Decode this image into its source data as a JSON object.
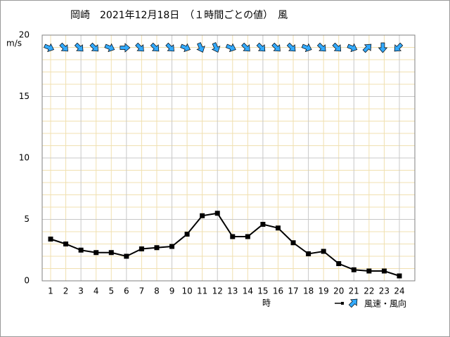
{
  "chart_data": {
    "type": "line",
    "title": "岡崎　2021年12月18日　（１時間ごとの値）　風",
    "y_label": "m/s",
    "x_label": "時",
    "categories": [
      1,
      2,
      3,
      4,
      5,
      6,
      7,
      8,
      9,
      10,
      11,
      12,
      13,
      14,
      15,
      16,
      17,
      18,
      19,
      20,
      21,
      22,
      23,
      24
    ],
    "series": [
      {
        "name": "風速・風向",
        "color": "#000000",
        "values": [
          3.4,
          3.0,
          2.5,
          2.3,
          2.3,
          2.0,
          2.6,
          2.7,
          2.8,
          3.8,
          5.3,
          5.5,
          3.6,
          3.6,
          4.6,
          4.3,
          3.1,
          2.2,
          2.4,
          1.4,
          0.9,
          0.8,
          0.8,
          0.4
        ],
        "direction_deg": [
          112,
          135,
          135,
          135,
          112,
          90,
          135,
          135,
          135,
          112,
          157,
          157,
          112,
          135,
          135,
          135,
          135,
          112,
          135,
          135,
          112,
          45,
          180,
          225
        ],
        "arrow_color": "#33aaff"
      }
    ],
    "ylim": [
      0,
      20
    ],
    "yticks": [
      0,
      5,
      10,
      15,
      20
    ],
    "yminorticks": [
      1,
      2,
      3,
      4,
      6,
      7,
      8,
      9,
      11,
      12,
      13,
      14,
      16,
      17,
      18,
      19
    ],
    "major_x_every": 3,
    "grid": true
  }
}
